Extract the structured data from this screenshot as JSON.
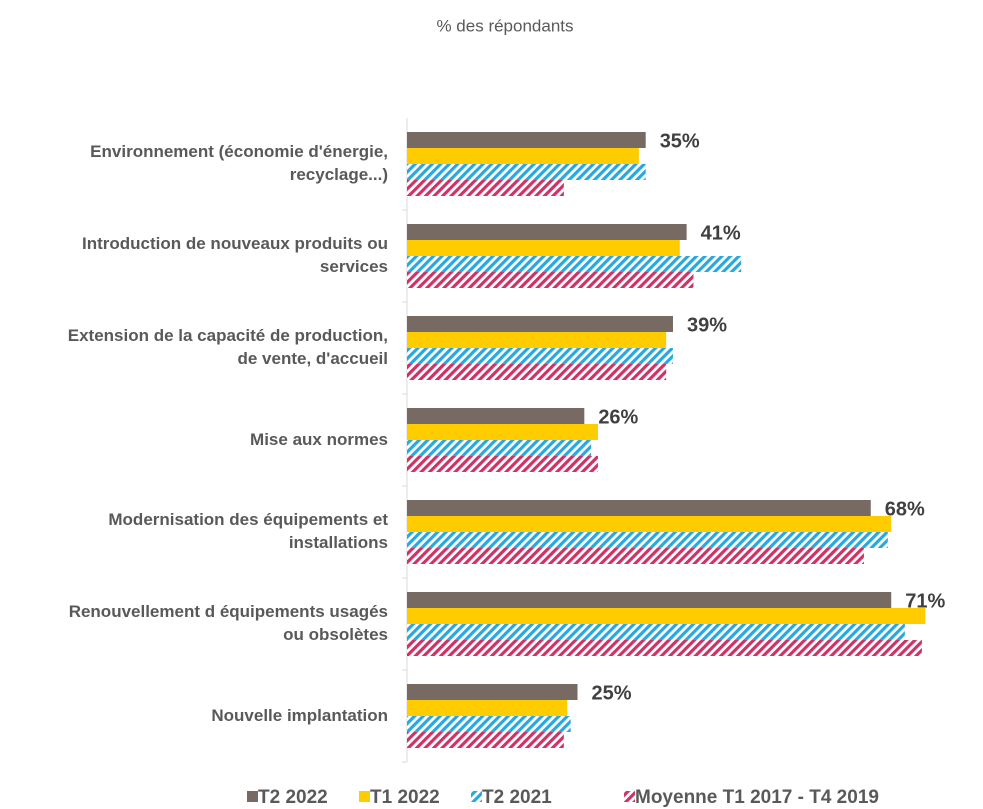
{
  "chart_data": {
    "type": "bar",
    "orientation": "horizontal",
    "subtitle": "% des répondants",
    "categories": [
      "Environnement (économie d'énergie, recyclage...)",
      "Introduction de nouveaux produits ou services",
      "Extension de la capacité de production, de vente, d'accueil",
      "Mise aux normes",
      "Modernisation des équipements et installations",
      "Renouvellement d équipements usagés ou obsolètes",
      "Nouvelle implantation"
    ],
    "series": [
      {
        "name": "T2 2022",
        "color": "#766a62",
        "values": [
          35,
          41,
          39,
          26,
          68,
          71,
          25
        ],
        "value_labels": [
          "35%",
          "41%",
          "39%",
          "26%",
          "68%",
          "71%",
          "25%"
        ]
      },
      {
        "name": "T1 2022",
        "color": "#ffcc00",
        "values": [
          34,
          40,
          38,
          28,
          71,
          76,
          23.5
        ]
      },
      {
        "name": "T2 2021",
        "color": "#29a8e0",
        "hatch": true,
        "values": [
          35,
          49,
          39,
          27,
          70.5,
          73,
          24
        ]
      },
      {
        "name": "Moyenne T1 2017 - T4 2019",
        "color": "#cc3366",
        "hatch": true,
        "values": [
          23,
          42,
          38,
          28,
          67,
          75.5,
          23
        ]
      }
    ],
    "xlim": [
      0,
      80
    ],
    "legend": "bottom"
  }
}
